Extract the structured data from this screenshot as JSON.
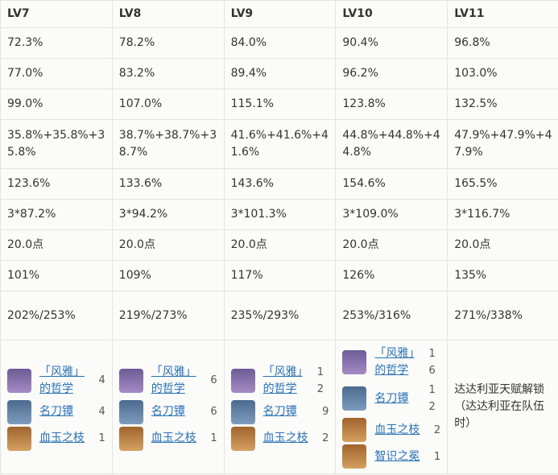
{
  "header": [
    "LV7",
    "LV8",
    "LV9",
    "LV10",
    "LV11"
  ],
  "rows": [
    [
      "72.3%",
      "78.2%",
      "84.0%",
      "90.4%",
      "96.8%"
    ],
    [
      "77.0%",
      "83.2%",
      "89.4%",
      "96.2%",
      "103.0%"
    ],
    [
      "99.0%",
      "107.0%",
      "115.1%",
      "123.8%",
      "132.5%"
    ],
    [
      "35.8%+35.8%+35.8%",
      "38.7%+38.7%+38.7%",
      "41.6%+41.6%+41.6%",
      "44.8%+44.8%+44.8%",
      "47.9%+47.9%+47.9%"
    ],
    [
      "123.6%",
      "133.6%",
      "143.6%",
      "154.6%",
      "165.5%"
    ],
    [
      "3*87.2%",
      "3*94.2%",
      "3*101.3%",
      "3*109.0%",
      "3*116.7%"
    ],
    [
      "20.0点",
      "20.0点",
      "20.0点",
      "20.0点",
      "20.0点"
    ],
    [
      "101%",
      "109%",
      "117%",
      "126%",
      "135%"
    ],
    [
      "202%/253%",
      "219%/273%",
      "235%/293%",
      "253%/316%",
      "271%/338%"
    ]
  ],
  "materials": [
    {
      "items": [
        {
          "name": "「风雅」的哲学",
          "count": 4
        },
        {
          "name": "名刀镡",
          "count": 4
        },
        {
          "name": "血玉之枝",
          "count": 1
        }
      ]
    },
    {
      "items": [
        {
          "name": "「风雅」的哲学",
          "count": 6
        },
        {
          "name": "名刀镡",
          "count": 6
        },
        {
          "name": "血玉之枝",
          "count": 1
        }
      ]
    },
    {
      "items": [
        {
          "name": "「风雅」的哲学",
          "count": 12
        },
        {
          "name": "名刀镡",
          "count": 9
        },
        {
          "name": "血玉之枝",
          "count": 2
        }
      ]
    },
    {
      "items": [
        {
          "name": "「风雅」的哲学",
          "count": 16
        },
        {
          "name": "名刀镡",
          "count": 12
        },
        {
          "name": "血玉之枝",
          "count": 2
        },
        {
          "name": "智识之冕",
          "count": 1
        }
      ]
    },
    {
      "note": "达达利亚天赋解锁（达达利亚在队伍时）"
    }
  ]
}
